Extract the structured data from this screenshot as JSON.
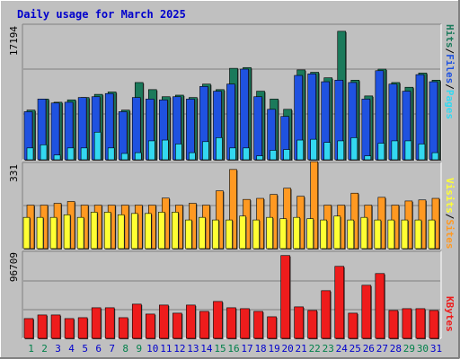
{
  "title": "Daily usage for March 2025",
  "colors": {
    "background": "#ffffff",
    "frame": "#c0c0c0",
    "panel": "#c0c0c0",
    "hits": "#1b7a5b",
    "files": "#1f52e0",
    "pages": "#33d8f0",
    "visits": "#ffff33",
    "sites": "#ff9922",
    "kbytes": "#ee1c1c",
    "title_text": "#0000cc",
    "weekday_text": "#0000cc",
    "weekend_text": "#00804a"
  },
  "chart_data": [
    {
      "type": "bar",
      "name": "hits-files-pages",
      "ymax_label": "17194",
      "ylim": [
        0,
        17194
      ],
      "grid": true,
      "legend": [
        "Pages",
        "/",
        "Files",
        "/",
        "Hits"
      ],
      "categories": [
        "1",
        "2",
        "3",
        "4",
        "5",
        "6",
        "7",
        "8",
        "9",
        "10",
        "11",
        "12",
        "13",
        "14",
        "15",
        "16",
        "17",
        "18",
        "19",
        "20",
        "21",
        "22",
        "23",
        "24",
        "25",
        "26",
        "27",
        "28",
        "29",
        "30",
        "31"
      ],
      "weekend_days": [
        "1",
        "2",
        "8",
        "9",
        "15",
        "16",
        "22",
        "23",
        "29",
        "30"
      ],
      "series": [
        {
          "name": "Hits",
          "values": [
            6300,
            7700,
            7300,
            7600,
            7900,
            8300,
            8600,
            6300,
            9800,
            8900,
            8000,
            8200,
            7900,
            9600,
            8900,
            11600,
            11700,
            8700,
            7700,
            6400,
            11400,
            11100,
            10400,
            16300,
            10100,
            8100,
            11500,
            9800,
            9200,
            11000,
            10100
          ]
        },
        {
          "name": "Files",
          "values": [
            6100,
            7700,
            7200,
            7300,
            7900,
            8000,
            8400,
            6100,
            7900,
            7700,
            7600,
            8000,
            7700,
            9300,
            8700,
            9600,
            11500,
            8000,
            6400,
            5500,
            10700,
            10900,
            9900,
            10100,
            9800,
            7700,
            11300,
            9600,
            8700,
            10800,
            9900
          ]
        },
        {
          "name": "Pages",
          "values": [
            1500,
            1900,
            600,
            1500,
            1500,
            3500,
            1500,
            800,
            900,
            2400,
            2500,
            2000,
            900,
            2300,
            2800,
            1500,
            1500,
            500,
            1200,
            1300,
            2500,
            2600,
            2200,
            2400,
            2800,
            500,
            2100,
            2400,
            2400,
            2000,
            900
          ]
        }
      ]
    },
    {
      "type": "bar",
      "name": "visits-sites",
      "ymax_label": "331",
      "ylim": [
        0,
        331
      ],
      "grid": true,
      "legend": [
        "Sites",
        "/",
        "Visits"
      ],
      "categories": [
        "1",
        "2",
        "3",
        "4",
        "5",
        "6",
        "7",
        "8",
        "9",
        "10",
        "11",
        "12",
        "13",
        "14",
        "15",
        "16",
        "17",
        "18",
        "19",
        "20",
        "21",
        "22",
        "23",
        "24",
        "25",
        "26",
        "27",
        "28",
        "29",
        "30",
        "31"
      ],
      "series": [
        {
          "name": "Sites",
          "values": [
            167,
            167,
            174,
            181,
            167,
            167,
            167,
            167,
            167,
            167,
            194,
            167,
            174,
            167,
            222,
            304,
            189,
            193,
            208,
            232,
            201,
            334,
            167,
            167,
            213,
            167,
            197,
            167,
            183,
            187,
            193
          ]
        },
        {
          "name": "Visits",
          "values": [
            120,
            120,
            120,
            130,
            120,
            140,
            140,
            130,
            135,
            135,
            140,
            140,
            110,
            120,
            110,
            110,
            125,
            110,
            120,
            115,
            120,
            115,
            110,
            125,
            110,
            120,
            110,
            110,
            110,
            110,
            110
          ]
        }
      ]
    },
    {
      "type": "bar",
      "name": "kbytes",
      "ymax_label": "96709",
      "ylim": [
        0,
        96709
      ],
      "grid": true,
      "legend": [
        "KBytes"
      ],
      "categories": [
        "1",
        "2",
        "3",
        "4",
        "5",
        "6",
        "7",
        "8",
        "9",
        "10",
        "11",
        "12",
        "13",
        "14",
        "15",
        "16",
        "17",
        "18",
        "19",
        "20",
        "21",
        "22",
        "23",
        "24",
        "25",
        "26",
        "27",
        "28",
        "29",
        "30",
        "31"
      ],
      "series": [
        {
          "name": "KBytes",
          "values": [
            22000,
            26000,
            26000,
            22000,
            23000,
            34000,
            34000,
            23000,
            38000,
            27000,
            37000,
            28000,
            37000,
            30000,
            41000,
            34000,
            33000,
            30000,
            24000,
            92000,
            35000,
            31000,
            53000,
            80000,
            28000,
            59000,
            72000,
            31000,
            33000,
            33000,
            31000
          ]
        }
      ]
    }
  ]
}
